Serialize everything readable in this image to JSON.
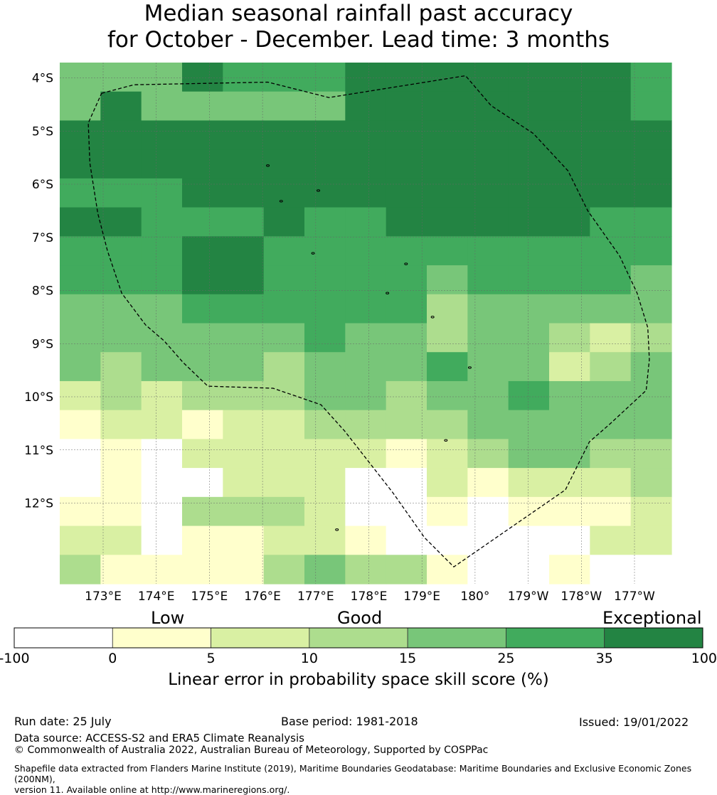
{
  "title": {
    "line1": "Median seasonal rainfall past accuracy",
    "line2": "for October - December. Lead time: 3 months"
  },
  "map": {
    "lat_labels": [
      "4°S",
      "5°S",
      "6°S",
      "7°S",
      "8°S",
      "9°S",
      "10°S",
      "11°S",
      "12°S"
    ],
    "lon_labels": [
      "173°E",
      "174°E",
      "175°E",
      "176°E",
      "177°E",
      "178°E",
      "179°E",
      "180°",
      "179°W",
      "178°W",
      "177°W"
    ],
    "grid_classes": [
      [
        4,
        4,
        4,
        6,
        5,
        5,
        5,
        6,
        6,
        6,
        6,
        6,
        6,
        6,
        5
      ],
      [
        4,
        6,
        4,
        4,
        4,
        4,
        4,
        6,
        6,
        6,
        6,
        6,
        6,
        6,
        5
      ],
      [
        6,
        6,
        6,
        6,
        6,
        6,
        6,
        6,
        6,
        6,
        6,
        6,
        6,
        6,
        6
      ],
      [
        6,
        6,
        6,
        6,
        6,
        6,
        6,
        6,
        6,
        6,
        6,
        6,
        6,
        6,
        6
      ],
      [
        5,
        5,
        5,
        6,
        6,
        6,
        6,
        6,
        6,
        6,
        6,
        6,
        6,
        6,
        6
      ],
      [
        6,
        6,
        5,
        5,
        5,
        6,
        5,
        5,
        6,
        6,
        6,
        6,
        6,
        5,
        5
      ],
      [
        5,
        5,
        5,
        6,
        6,
        5,
        5,
        5,
        5,
        5,
        5,
        5,
        5,
        5,
        5
      ],
      [
        5,
        5,
        5,
        6,
        6,
        5,
        5,
        5,
        5,
        4,
        5,
        5,
        5,
        5,
        4
      ],
      [
        4,
        4,
        4,
        5,
        5,
        5,
        5,
        5,
        5,
        3,
        4,
        4,
        4,
        4,
        4
      ],
      [
        4,
        4,
        4,
        4,
        4,
        4,
        5,
        4,
        4,
        3,
        4,
        4,
        3,
        2,
        3
      ],
      [
        4,
        3,
        4,
        4,
        4,
        3,
        4,
        4,
        4,
        5,
        4,
        4,
        2,
        3,
        4
      ],
      [
        2,
        3,
        2,
        3,
        3,
        3,
        4,
        4,
        3,
        4,
        4,
        5,
        4,
        4,
        4
      ],
      [
        1,
        2,
        2,
        1,
        2,
        2,
        3,
        3,
        3,
        3,
        4,
        4,
        4,
        4,
        4
      ],
      [
        0,
        1,
        0,
        2,
        2,
        2,
        2,
        2,
        1,
        2,
        3,
        4,
        4,
        3,
        3
      ],
      [
        0,
        1,
        0,
        0,
        2,
        2,
        2,
        0,
        0,
        2,
        1,
        2,
        2,
        2,
        3
      ],
      [
        1,
        1,
        0,
        3,
        3,
        3,
        2,
        0,
        0,
        1,
        0,
        1,
        1,
        1,
        2
      ],
      [
        2,
        2,
        0,
        1,
        1,
        2,
        2,
        1,
        0,
        0,
        0,
        0,
        0,
        2,
        2
      ],
      [
        3,
        1,
        1,
        1,
        1,
        3,
        4,
        3,
        3,
        1,
        0,
        0,
        1,
        0,
        0
      ]
    ],
    "boundary": [
      [
        172.97,
        -4.29
      ],
      [
        173.58,
        -4.13
      ],
      [
        176.1,
        -4.08
      ],
      [
        177.25,
        -4.37
      ],
      [
        179.82,
        -3.96
      ],
      [
        180.3,
        -4.52
      ],
      [
        181.1,
        -5.05
      ],
      [
        181.75,
        -5.75
      ],
      [
        182.12,
        -6.5
      ],
      [
        182.72,
        -7.35
      ],
      [
        183.05,
        -8.05
      ],
      [
        183.25,
        -8.7
      ],
      [
        183.28,
        -9.3
      ],
      [
        183.22,
        -9.88
      ],
      [
        182.55,
        -10.5
      ],
      [
        182.15,
        -10.85
      ],
      [
        181.7,
        -11.75
      ],
      [
        179.6,
        -13.2
      ],
      [
        179.05,
        -12.65
      ],
      [
        178.45,
        -11.8
      ],
      [
        177.55,
        -10.65
      ],
      [
        177.1,
        -10.15
      ],
      [
        176.2,
        -9.84
      ],
      [
        174.97,
        -9.8
      ],
      [
        174.5,
        -9.35
      ],
      [
        174.15,
        -8.95
      ],
      [
        173.8,
        -8.65
      ],
      [
        173.35,
        -8.05
      ],
      [
        173.08,
        -7.25
      ],
      [
        172.9,
        -6.55
      ],
      [
        172.75,
        -5.6
      ],
      [
        172.72,
        -4.85
      ],
      [
        172.97,
        -4.29
      ]
    ],
    "islands": [
      [
        176.1,
        -5.65
      ],
      [
        176.35,
        -6.32
      ],
      [
        177.05,
        -6.12
      ],
      [
        176.95,
        -7.3
      ],
      [
        178.7,
        -7.5
      ],
      [
        178.35,
        -8.05
      ],
      [
        179.2,
        -8.5
      ],
      [
        179.9,
        -9.45
      ],
      [
        179.45,
        -10.82
      ],
      [
        177.4,
        -12.5
      ]
    ]
  },
  "colorbar": {
    "category_words": [
      "Low",
      "Good",
      "Exceptional"
    ],
    "tick_labels": [
      "-100",
      "0",
      "5",
      "10",
      "15",
      "25",
      "35",
      "100"
    ],
    "colors": [
      "#ffffff",
      "#ffffcc",
      "#d9f0a3",
      "#addd8e",
      "#78c679",
      "#41ab5d",
      "#238443"
    ],
    "label": "Linear error in probability space skill score (%)"
  },
  "footer": {
    "run_date": "Run date: 25 July",
    "base_period": "Base period: 1981-2018",
    "issued": "Issued: 19/01/2022",
    "data_source": "Data source: ACCESS-S2 and ERA5 Climate Reanalysis",
    "copyright": "© Commonwealth of Australia 2022, Australian Bureau of Meteorology, Supported by COSPPac",
    "shapefile_line1": "Shapefile data extracted from Flanders Marine Institute (2019), Maritime Boundaries Geodatabase: Maritime Boundaries and Exclusive Economic Zones (200NM),",
    "shapefile_line2": "version 11. Available online at http://www.marineregions.org/."
  }
}
